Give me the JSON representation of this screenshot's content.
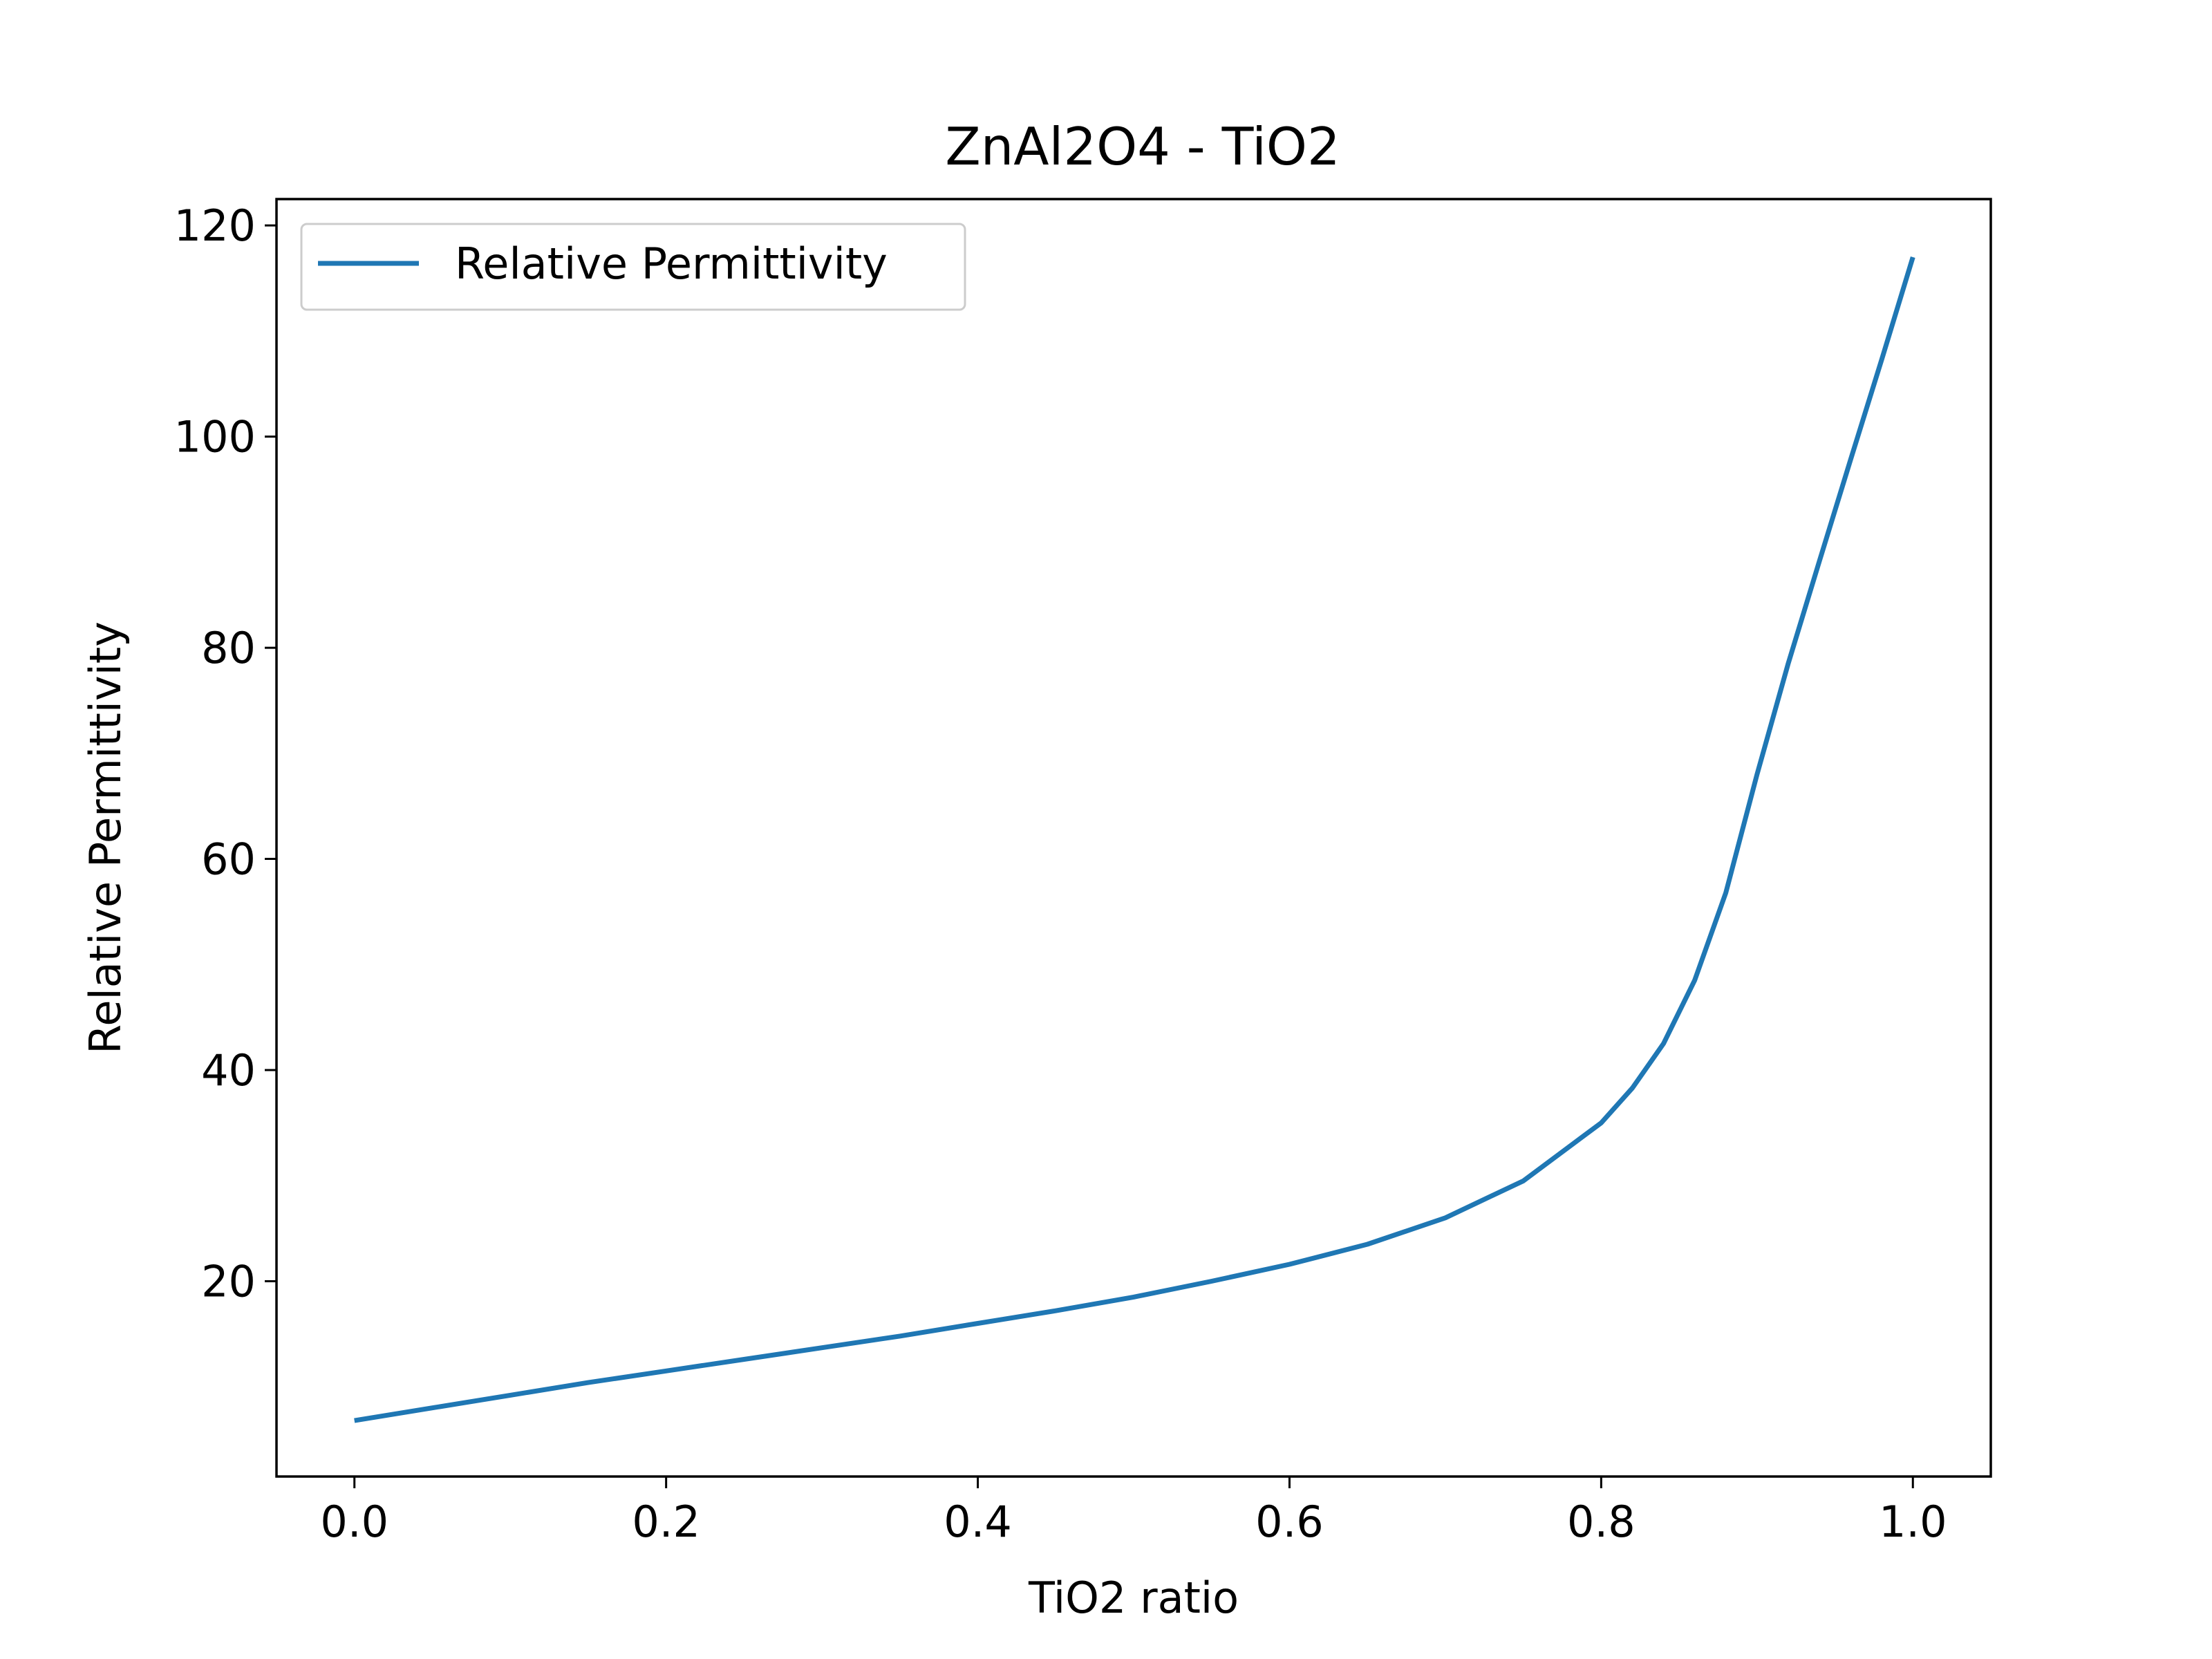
{
  "chart_data": {
    "type": "line",
    "title": "ZnAl2O4 - TiO2",
    "xlabel": "TiO2 ratio",
    "ylabel": "Relative Permittivity",
    "xlim": [
      -0.05,
      1.05
    ],
    "ylim": [
      1.5,
      122.5
    ],
    "xticks": [
      0.0,
      0.2,
      0.4,
      0.6,
      0.8,
      1.0
    ],
    "xtick_labels": [
      "0.0",
      "0.2",
      "0.4",
      "0.6",
      "0.8",
      "1.0"
    ],
    "yticks": [
      20,
      40,
      60,
      80,
      100,
      120
    ],
    "ytick_labels": [
      "20",
      "40",
      "60",
      "80",
      "100",
      "120"
    ],
    "grid": false,
    "legend": {
      "position": "top-left",
      "entries": [
        "Relative Permittivity"
      ]
    },
    "series": [
      {
        "name": "Relative Permittivity",
        "color": "#1f77b4",
        "x": [
          0.0,
          0.05,
          0.1,
          0.15,
          0.2,
          0.25,
          0.3,
          0.35,
          0.4,
          0.45,
          0.5,
          0.55,
          0.6,
          0.65,
          0.7,
          0.75,
          0.8,
          0.82,
          0.84,
          0.86,
          0.88,
          0.9,
          0.92,
          0.94,
          0.96,
          0.98,
          1.0
        ],
        "y": [
          6.8,
          8.0,
          9.2,
          10.4,
          11.5,
          12.6,
          13.7,
          14.8,
          16.0,
          17.2,
          18.5,
          20.0,
          21.6,
          23.5,
          26.0,
          29.5,
          35.0,
          38.3,
          42.5,
          48.5,
          56.8,
          68.0,
          78.5,
          88.2,
          97.8,
          107.3,
          117.0
        ]
      }
    ]
  }
}
